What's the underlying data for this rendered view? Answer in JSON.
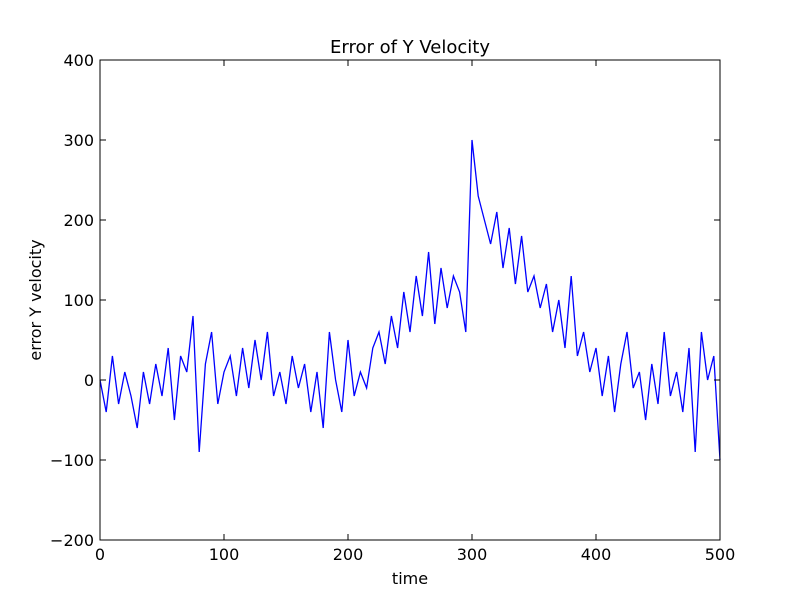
{
  "chart_data": {
    "type": "line",
    "title": "Error of Y Velocity",
    "x_label": "time",
    "y_label": "error Y velocity",
    "x": [
      0,
      5,
      10,
      15,
      20,
      25,
      30,
      35,
      40,
      45,
      50,
      55,
      60,
      65,
      70,
      75,
      80,
      85,
      90,
      95,
      100,
      105,
      110,
      115,
      120,
      125,
      130,
      135,
      140,
      145,
      150,
      155,
      160,
      165,
      170,
      175,
      180,
      185,
      190,
      195,
      200,
      205,
      210,
      215,
      220,
      225,
      230,
      235,
      240,
      245,
      250,
      255,
      260,
      265,
      270,
      275,
      280,
      285,
      290,
      295,
      300,
      305,
      310,
      315,
      320,
      325,
      330,
      335,
      340,
      345,
      350,
      355,
      360,
      365,
      370,
      375,
      380,
      385,
      390,
      395,
      400,
      405,
      410,
      415,
      420,
      425,
      430,
      435,
      440,
      445,
      450,
      455,
      460,
      465,
      470,
      475,
      480,
      485,
      490,
      495,
      500
    ],
    "series": [
      {
        "name": "error Y velocity",
        "color": "#0000ff",
        "values": [
          0,
          -40,
          30,
          -30,
          10,
          -20,
          -60,
          10,
          -30,
          20,
          -20,
          40,
          -50,
          30,
          10,
          80,
          -90,
          20,
          60,
          -30,
          10,
          30,
          -20,
          40,
          -10,
          50,
          0,
          60,
          -20,
          10,
          -30,
          30,
          -10,
          20,
          -40,
          10,
          -60,
          60,
          0,
          -40,
          50,
          -20,
          10,
          -10,
          40,
          60,
          20,
          80,
          40,
          110,
          60,
          130,
          80,
          160,
          70,
          140,
          90,
          130,
          110,
          60,
          300,
          230,
          200,
          170,
          210,
          140,
          190,
          120,
          180,
          110,
          130,
          90,
          120,
          60,
          100,
          40,
          130,
          30,
          60,
          10,
          40,
          -20,
          30,
          -40,
          20,
          60,
          -10,
          10,
          -50,
          20,
          -30,
          60,
          -20,
          10,
          -40,
          40,
          -90,
          60,
          0,
          30,
          -100
        ]
      }
    ],
    "xlim": [
      0,
      500
    ],
    "xticks": [
      0,
      100,
      200,
      300,
      400,
      500
    ],
    "ylim": [
      -200,
      400
    ],
    "yticks": [
      {
        "value": -200,
        "label": "−200"
      },
      {
        "value": -100,
        "label": "−100"
      },
      0,
      100,
      200,
      300,
      400
    ]
  }
}
